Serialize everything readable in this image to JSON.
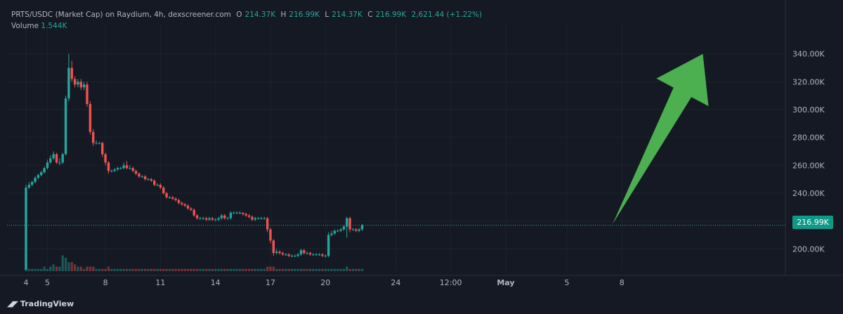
{
  "legend": {
    "symbol": "PRTS/USDC (Market Cap) on Raydium, 4h, dexscreener.com",
    "o_label": "O",
    "o_value": "214.37K",
    "h_label": "H",
    "h_value": "216.99K",
    "l_label": "L",
    "l_value": "214.37K",
    "c_label": "C",
    "c_value": "216.99K",
    "change": "2,621.44 (+1.22%)",
    "volume_label": "Volume",
    "volume_value": "1.544K"
  },
  "price_badge": "216.99K",
  "branding": "TradingView",
  "colors": {
    "up": "#26a69a",
    "down": "#ef5350",
    "arrow": "#4caf50",
    "grid": "#1e222d",
    "price_line": "#26a69a"
  },
  "chart_data": {
    "type": "candlestick",
    "y_axis_ticks": [
      "200.00K",
      "220.00K",
      "240.00K",
      "260.00K",
      "280.00K",
      "300.00K",
      "320.00K",
      "340.00K"
    ],
    "y_tick_values": [
      200,
      220,
      240,
      260,
      280,
      300,
      320,
      340
    ],
    "ylim": [
      184,
      356
    ],
    "x_axis_ticks": [
      {
        "label": "4",
        "index": 0
      },
      {
        "label": "5",
        "index": 7
      },
      {
        "label": "8",
        "index": 26
      },
      {
        "label": "11",
        "index": 44
      },
      {
        "label": "14",
        "index": 62
      },
      {
        "label": "17",
        "index": 80
      },
      {
        "label": "20",
        "index": 98
      },
      {
        "label": "24",
        "index": 121
      },
      {
        "label": "12:00",
        "index": 139
      },
      {
        "label": "May",
        "index": 157
      },
      {
        "label": "5",
        "index": 177
      },
      {
        "label": "8",
        "index": 195
      }
    ],
    "last_price": 216.99,
    "candles": [
      [
        185,
        244,
        185,
        246,
        8
      ],
      [
        244,
        246,
        243,
        248,
        1
      ],
      [
        246,
        248,
        245,
        249,
        1
      ],
      [
        248,
        251,
        247,
        252,
        1
      ],
      [
        251,
        253,
        250,
        254,
        1
      ],
      [
        253,
        255,
        252,
        256,
        1
      ],
      [
        255,
        258,
        254,
        259,
        2
      ],
      [
        258,
        262,
        257,
        264,
        1
      ],
      [
        262,
        265,
        261,
        267,
        2
      ],
      [
        265,
        268,
        264,
        270,
        3
      ],
      [
        268,
        262,
        261,
        269,
        2
      ],
      [
        262,
        262,
        260,
        265,
        2
      ],
      [
        262,
        268,
        261,
        269,
        7
      ],
      [
        268,
        308,
        267,
        310,
        6
      ],
      [
        308,
        330,
        306,
        340,
        4
      ],
      [
        330,
        322,
        320,
        335,
        4
      ],
      [
        322,
        318,
        316,
        324,
        3
      ],
      [
        318,
        320,
        316,
        322,
        2
      ],
      [
        320,
        316,
        314,
        322,
        2
      ],
      [
        316,
        318,
        314,
        320,
        1
      ],
      [
        318,
        304,
        302,
        320,
        2
      ],
      [
        304,
        284,
        282,
        306,
        2
      ],
      [
        284,
        276,
        274,
        286,
        2
      ],
      [
        276,
        276,
        275,
        278,
        1
      ],
      [
        276,
        276,
        275,
        277,
        1
      ],
      [
        276,
        268,
        266,
        277,
        1
      ],
      [
        268,
        262,
        260,
        269,
        1
      ],
      [
        262,
        256,
        254,
        263,
        2
      ],
      [
        256,
        256,
        255,
        257,
        1
      ],
      [
        256,
        257,
        255,
        258,
        1
      ],
      [
        257,
        258,
        256,
        259,
        1
      ],
      [
        258,
        258,
        257,
        259,
        1
      ],
      [
        258,
        260,
        257,
        262,
        1
      ],
      [
        260,
        258,
        257,
        263,
        1
      ],
      [
        258,
        258,
        257,
        260,
        1
      ],
      [
        258,
        256,
        255,
        259,
        1
      ],
      [
        256,
        254,
        253,
        257,
        1
      ],
      [
        254,
        252,
        251,
        255,
        1
      ],
      [
        252,
        252,
        251,
        253,
        1
      ],
      [
        252,
        250,
        249,
        253,
        1
      ],
      [
        250,
        250,
        249,
        251,
        1
      ],
      [
        250,
        249,
        248,
        251,
        1
      ],
      [
        249,
        246,
        245,
        250,
        1
      ],
      [
        246,
        246,
        245,
        247,
        1
      ],
      [
        246,
        244,
        243,
        247,
        1
      ],
      [
        244,
        240,
        239,
        245,
        1
      ],
      [
        240,
        237,
        236,
        241,
        1
      ],
      [
        237,
        237,
        236,
        238,
        1
      ],
      [
        237,
        236,
        235,
        238,
        1
      ],
      [
        236,
        235,
        234,
        237,
        1
      ],
      [
        235,
        233,
        232,
        236,
        1
      ],
      [
        233,
        232,
        231,
        234,
        1
      ],
      [
        232,
        231,
        230,
        233,
        1
      ],
      [
        231,
        229,
        228,
        232,
        1
      ],
      [
        229,
        228,
        227,
        230,
        1
      ],
      [
        228,
        224,
        223,
        229,
        1
      ],
      [
        224,
        222,
        221,
        225,
        1
      ],
      [
        222,
        222,
        221,
        223,
        1
      ],
      [
        222,
        222,
        221,
        223,
        1
      ],
      [
        222,
        221,
        220,
        223,
        1
      ],
      [
        221,
        222,
        220,
        223,
        1
      ],
      [
        222,
        221,
        220,
        223,
        1
      ],
      [
        221,
        221,
        220,
        222,
        1
      ],
      [
        221,
        222,
        220,
        223,
        1
      ],
      [
        222,
        224,
        221,
        225,
        1
      ],
      [
        224,
        222,
        221,
        225,
        1
      ],
      [
        222,
        222,
        221,
        223,
        1
      ],
      [
        222,
        226,
        221,
        227,
        1
      ],
      [
        226,
        226,
        225,
        227,
        1
      ],
      [
        226,
        226,
        225,
        227,
        1
      ],
      [
        226,
        226,
        225,
        227,
        1
      ],
      [
        226,
        225,
        224,
        226,
        1
      ],
      [
        225,
        224,
        223,
        226,
        1
      ],
      [
        224,
        223,
        222,
        225,
        1
      ],
      [
        223,
        221,
        220,
        224,
        1
      ],
      [
        221,
        222,
        220,
        223,
        1
      ],
      [
        222,
        222,
        221,
        223,
        1
      ],
      [
        222,
        222,
        221,
        223,
        1
      ],
      [
        222,
        222,
        221,
        223,
        1
      ],
      [
        222,
        214,
        212,
        223,
        2
      ],
      [
        214,
        206,
        204,
        215,
        2
      ],
      [
        206,
        197,
        195,
        207,
        2
      ],
      [
        197,
        198,
        196,
        200,
        1
      ],
      [
        198,
        197,
        196,
        199,
        1
      ],
      [
        197,
        196,
        195,
        198,
        1
      ],
      [
        196,
        196,
        195,
        197,
        1
      ],
      [
        196,
        195,
        194,
        197,
        1
      ],
      [
        195,
        195,
        194,
        196,
        1
      ],
      [
        195,
        195,
        194,
        196,
        1
      ],
      [
        195,
        196,
        194,
        197,
        1
      ],
      [
        196,
        199,
        195,
        200,
        1
      ],
      [
        199,
        197,
        196,
        200,
        1
      ],
      [
        197,
        197,
        196,
        198,
        1
      ],
      [
        197,
        196,
        195,
        198,
        1
      ],
      [
        196,
        196,
        195,
        197,
        1
      ],
      [
        196,
        196,
        195,
        197,
        1
      ],
      [
        196,
        196,
        195,
        197,
        1
      ],
      [
        196,
        195,
        194,
        197,
        1
      ],
      [
        195,
        195,
        194,
        196,
        1
      ],
      [
        195,
        210,
        194,
        212,
        1
      ],
      [
        210,
        211,
        209,
        213,
        1
      ],
      [
        211,
        213,
        210,
        214,
        1
      ],
      [
        213,
        213,
        212,
        214,
        1
      ],
      [
        213,
        214,
        212,
        215,
        1
      ],
      [
        214,
        216,
        213,
        217,
        1
      ],
      [
        216,
        222,
        208,
        223,
        2
      ],
      [
        222,
        214,
        212,
        223,
        1
      ],
      [
        214,
        214,
        213,
        215,
        1
      ],
      [
        214,
        213,
        212,
        215,
        1
      ],
      [
        213,
        214,
        212,
        215,
        1
      ],
      [
        214,
        217,
        213,
        218,
        1
      ]
    ],
    "arrow": {
      "from_index": 192,
      "from_value": 218,
      "to_index": 210,
      "to_value": 340
    }
  }
}
